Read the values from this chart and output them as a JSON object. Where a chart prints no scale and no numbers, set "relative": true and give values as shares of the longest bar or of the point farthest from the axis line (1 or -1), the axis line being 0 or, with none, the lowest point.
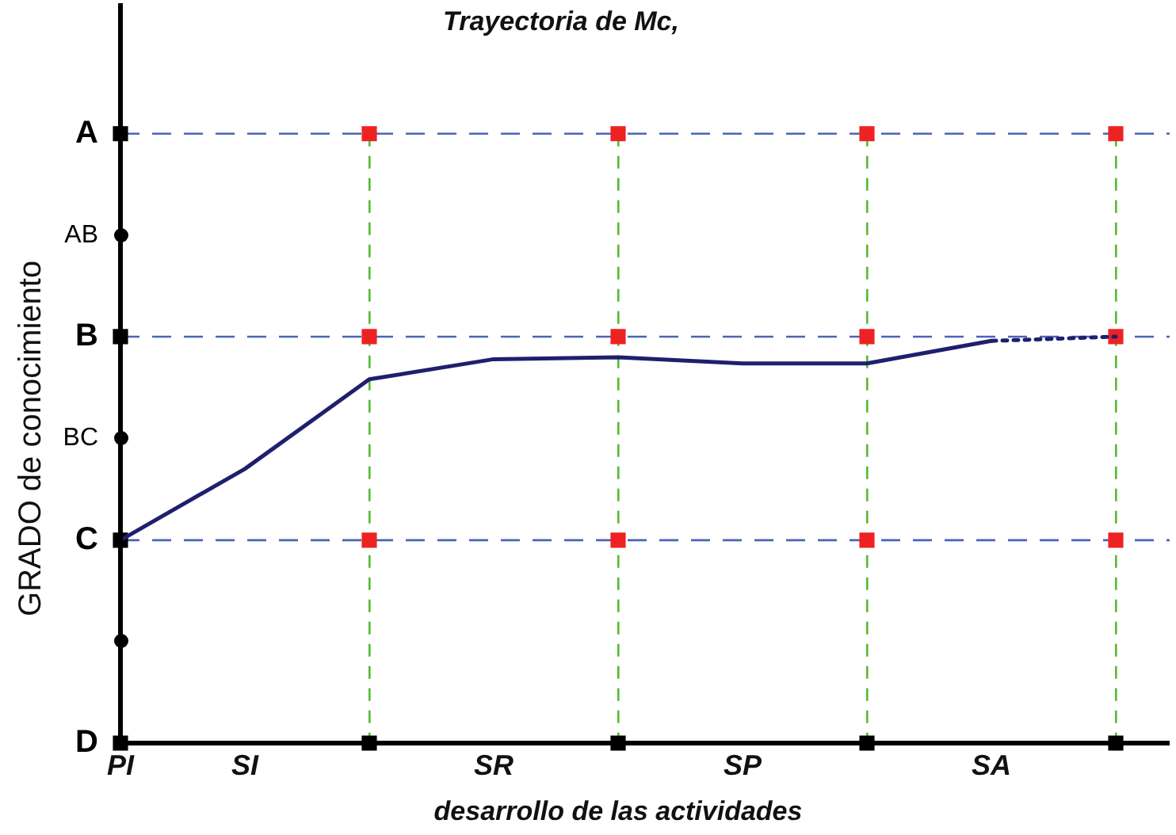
{
  "chart_data": {
    "type": "line",
    "title": "Trayectoria de Mc,",
    "xlabel": "desarrollo de las actividades",
    "ylabel": "GRADO de conocimiento",
    "categories": [
      "PI",
      "SI",
      null,
      "SR",
      null,
      "SP",
      null,
      "SA",
      null
    ],
    "relative": true,
    "grid": "x",
    "legend": false,
    "series": [
      {
        "type": "line",
        "color": "#1f1f6e",
        "line_style": "solid",
        "marker": "none",
        "values": [
          0.333,
          0.45,
          0.597,
          0.63,
          0.633,
          0.623,
          0.623,
          0.66,
          null
        ]
      },
      {
        "type": "line",
        "color": "#1f1f6e",
        "line_style": "dotted",
        "marker": "none",
        "values": [
          null,
          null,
          null,
          null,
          null,
          null,
          null,
          0.66,
          0.667
        ]
      },
      {
        "type": "scatter",
        "color": "#000000",
        "marker": "square",
        "values": [
          0,
          null,
          0,
          null,
          0,
          null,
          0,
          null,
          0
        ]
      },
      {
        "type": "scatter",
        "colors": [
          "#000000",
          null,
          "#ee2222",
          null,
          "#ee2222",
          null,
          "#ee2222",
          null,
          "#ee2222"
        ],
        "marker": "square",
        "values": [
          0.333,
          null,
          0.333,
          null,
          0.333,
          null,
          0.333,
          null,
          0.333
        ]
      },
      {
        "type": "scatter",
        "colors": [
          "#000000",
          null,
          "#ee2222",
          null,
          "#ee2222",
          null,
          "#ee2222",
          null,
          "#ee2222"
        ],
        "marker": "square",
        "values": [
          0.667,
          null,
          0.667,
          null,
          0.667,
          null,
          0.667,
          null,
          0.667
        ]
      },
      {
        "type": "scatter",
        "colors": [
          "#000000",
          null,
          "#ee2222",
          null,
          "#ee2222",
          null,
          "#ee2222",
          null,
          "#ee2222"
        ],
        "marker": "square",
        "values": [
          1,
          null,
          1,
          null,
          1,
          null,
          1,
          null,
          1
        ]
      }
    ],
    "ref_lines": [
      {
        "axis": "y",
        "value": 0.333,
        "label": "C",
        "color": "#4a64b8",
        "line_style": "dashed"
      },
      {
        "axis": "y",
        "value": 0.667,
        "label": "B",
        "color": "#4a64b8",
        "line_style": "dashed"
      },
      {
        "axis": "y",
        "value": 1,
        "label": "A",
        "color": "#4a64b8",
        "line_style": "dashed"
      }
    ],
    "annotations": [
      "D",
      "BC",
      "AB"
    ]
  }
}
